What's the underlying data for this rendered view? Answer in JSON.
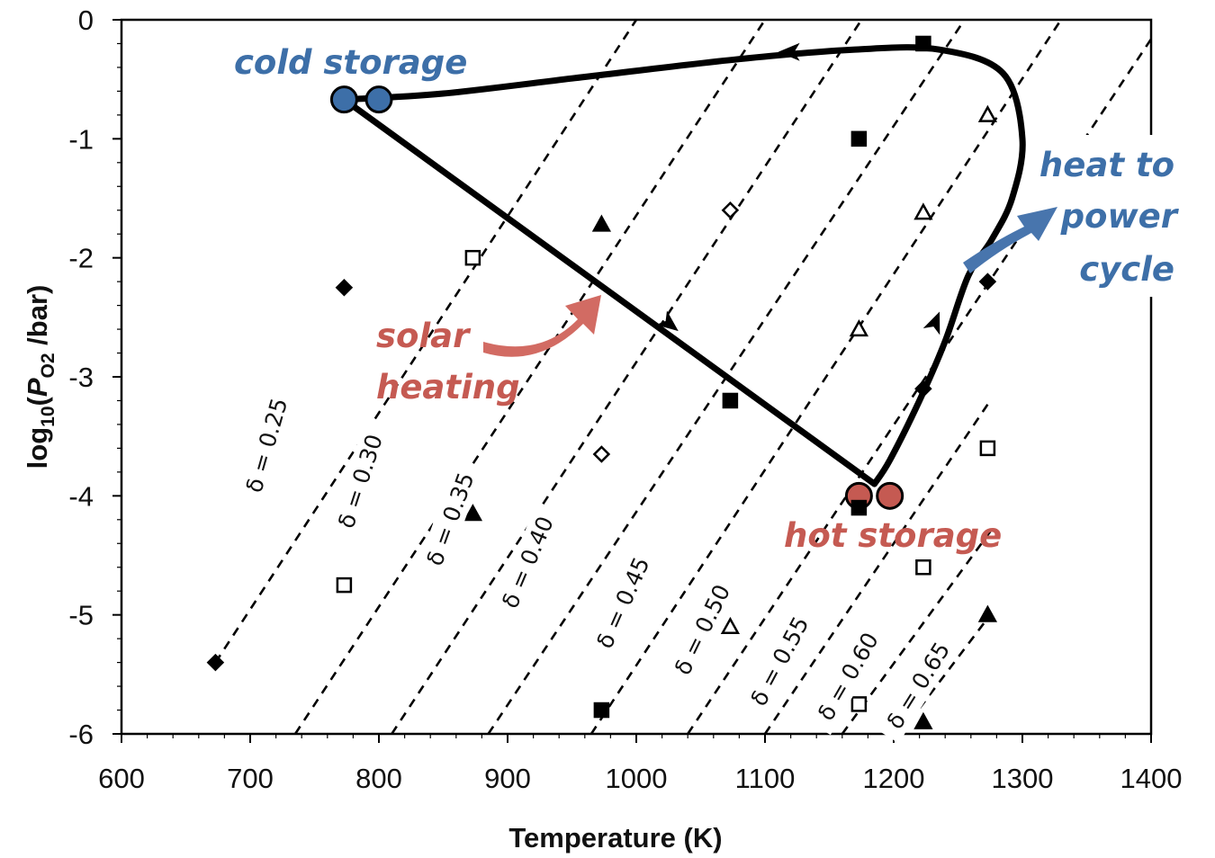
{
  "chart_data": {
    "type": "scatter",
    "xlabel": "Temperature (K)",
    "ylabel": "log10(PO2 /bar)",
    "ylabel_parts": {
      "pre": "log",
      "sub1": "10",
      "mid": "(",
      "p": "P",
      "sub2": "O2",
      "post": " /bar)"
    },
    "xlim": [
      600,
      1400
    ],
    "ylim": [
      -6,
      0
    ],
    "x_ticks": [
      600,
      700,
      800,
      900,
      1000,
      1100,
      1200,
      1300,
      1400
    ],
    "y_ticks": [
      0,
      -1,
      -2,
      -3,
      -4,
      -5,
      -6
    ],
    "x_tick_labels": [
      "600",
      "700",
      "800",
      "900",
      "1000",
      "1100",
      "1200",
      "1300",
      "1400"
    ],
    "y_tick_labels": [
      "0",
      "-1",
      "-2",
      "-3",
      "-4",
      "-5",
      "-6"
    ],
    "grid": false,
    "iso_lines": [
      {
        "label": "δ = 0.25",
        "x": [
          673,
          1000
        ],
        "y": [
          -5.4,
          0.0
        ]
      },
      {
        "label": "δ = 0.30",
        "x": [
          735,
          1100
        ],
        "y": [
          -6.0,
          0.0
        ]
      },
      {
        "label": "δ = 0.35",
        "x": [
          810,
          1175
        ],
        "y": [
          -6.0,
          0.0
        ]
      },
      {
        "label": "δ = 0.40",
        "x": [
          885,
          1255
        ],
        "y": [
          -6.0,
          0.0
        ]
      },
      {
        "label": "δ = 0.45",
        "x": [
          965,
          1330
        ],
        "y": [
          -6.0,
          0.0
        ]
      },
      {
        "label": "δ = 0.50",
        "x": [
          1040,
          1410
        ],
        "y": [
          -6.0,
          0.0
        ]
      },
      {
        "label": "δ = 0.55",
        "x": [
          1100,
          1275
        ],
        "y": [
          -6.0,
          -3.2
        ]
      },
      {
        "label": "δ = 0.60",
        "x": [
          1160,
          1275
        ],
        "y": [
          -6.0,
          -4.3
        ]
      },
      {
        "label": "δ = 0.65",
        "x": [
          1205,
          1275
        ],
        "y": [
          -6.0,
          -5.0
        ]
      }
    ],
    "series": [
      {
        "marker": "diamond-filled",
        "points": [
          [
            673,
            -5.4
          ],
          [
            773,
            -2.25
          ],
          [
            1223,
            -3.1
          ],
          [
            1273,
            -2.2
          ]
        ]
      },
      {
        "marker": "square-open",
        "points": [
          [
            773,
            -4.75
          ],
          [
            873,
            -2.0
          ],
          [
            1173,
            -5.75
          ],
          [
            1223,
            -4.6
          ],
          [
            1273,
            -3.6
          ]
        ]
      },
      {
        "marker": "triangle-filled",
        "points": [
          [
            873,
            -4.15
          ],
          [
            973,
            -1.72
          ],
          [
            1223,
            -5.9
          ],
          [
            1273,
            -5.0
          ]
        ]
      },
      {
        "marker": "diamond-open",
        "points": [
          [
            973,
            -3.65
          ],
          [
            1073,
            -1.6
          ]
        ]
      },
      {
        "marker": "square-filled",
        "points": [
          [
            973,
            -5.8
          ],
          [
            1073,
            -3.2
          ],
          [
            1173,
            -1.0
          ],
          [
            1223,
            -0.2
          ],
          [
            1173,
            -4.1
          ]
        ]
      },
      {
        "marker": "triangle-open",
        "points": [
          [
            1073,
            -5.1
          ],
          [
            1173,
            -2.6
          ],
          [
            1223,
            -1.62
          ],
          [
            1273,
            -0.8
          ]
        ]
      }
    ],
    "cycle": {
      "path": [
        [
          773,
          -0.67
        ],
        [
          850,
          -0.62
        ],
        [
          960,
          -0.48
        ],
        [
          1080,
          -0.33
        ],
        [
          1170,
          -0.25
        ],
        [
          1235,
          -0.25
        ],
        [
          1285,
          -0.45
        ],
        [
          1300,
          -1.0
        ],
        [
          1292,
          -1.5
        ],
        [
          1276,
          -1.85
        ],
        [
          1258,
          -2.15
        ],
        [
          1240,
          -2.7
        ],
        [
          1220,
          -3.2
        ],
        [
          1197,
          -3.7
        ],
        [
          1185,
          -3.9
        ],
        [
          773,
          -0.67
        ]
      ],
      "arrows": [
        [
          1120,
          -0.27
        ],
        [
          1025,
          -2.55
        ],
        [
          1232,
          -2.55
        ]
      ],
      "cold_storage_points": [
        [
          773,
          -0.67
        ],
        [
          800,
          -0.67
        ]
      ],
      "hot_storage_points": [
        [
          1173,
          -4.0
        ],
        [
          1197,
          -4.0
        ]
      ]
    },
    "annotations": {
      "cold_storage": "cold storage",
      "hot_storage": "hot storage",
      "solar_heating": [
        "solar",
        "heating"
      ],
      "heat_to_power": [
        "heat to",
        "power",
        "cycle"
      ]
    },
    "colors": {
      "cold": "#3d6fa8",
      "hot": "#c55a52",
      "solar_arrow": "#d26b63",
      "power_arrow": "#4875ad",
      "line": "#000000"
    }
  }
}
